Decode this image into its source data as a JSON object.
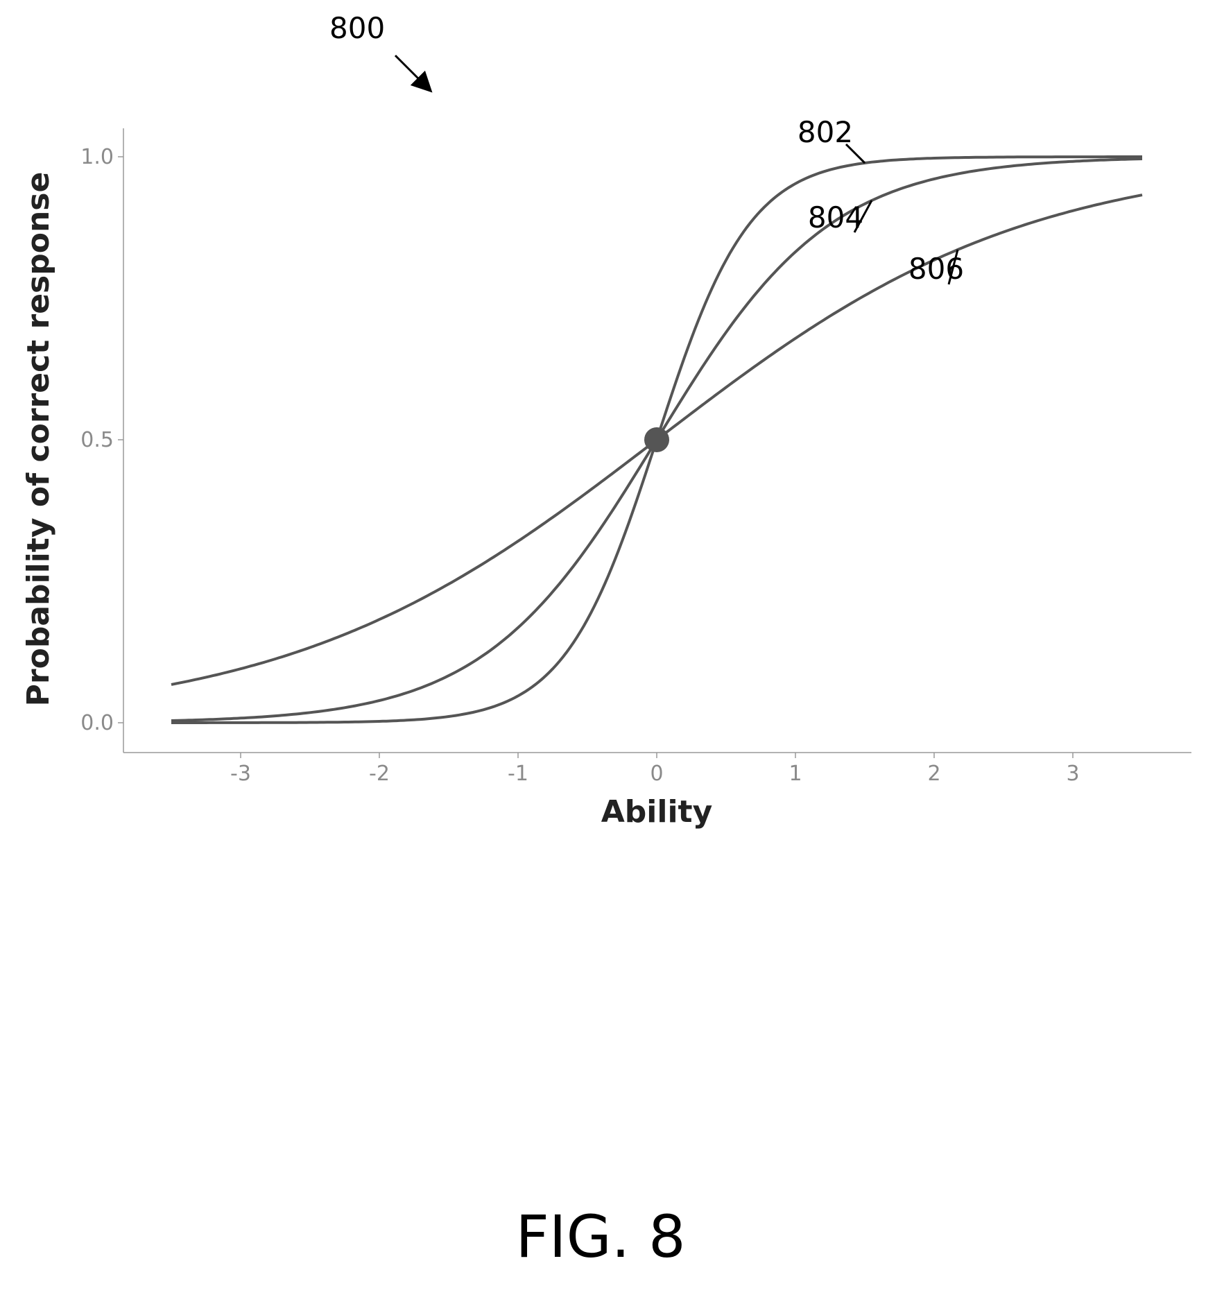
{
  "figure": {
    "ref_number": "800",
    "caption": "FIG. 8"
  },
  "chart_data": {
    "type": "line",
    "xlabel": "Ability",
    "ylabel": "Probability of correct response",
    "xlim": [
      -3.5,
      3.5
    ],
    "ylim": [
      0.0,
      1.0
    ],
    "x_ticks": [
      "-3",
      "-2",
      "-1",
      "0",
      "1",
      "2",
      "3"
    ],
    "y_ticks": [
      "0.0",
      "0.5",
      "1.0"
    ],
    "grid": false,
    "series": [
      {
        "name": "802",
        "model": "logistic",
        "discrimination": 3.0,
        "difficulty": 0.0,
        "x": [
          -3.5,
          -3,
          -2,
          -1,
          0,
          1,
          2,
          3,
          3.5
        ],
        "y": [
          0.0,
          0.0,
          0.0,
          0.05,
          0.5,
          0.95,
          1.0,
          1.0,
          1.0
        ]
      },
      {
        "name": "804",
        "model": "logistic",
        "discrimination": 1.6,
        "difficulty": 0.0,
        "x": [
          -3.5,
          -3,
          -2,
          -1,
          0,
          1,
          2,
          3,
          3.5
        ],
        "y": [
          0.03,
          0.05,
          0.11,
          0.26,
          0.5,
          0.74,
          0.89,
          0.95,
          0.97
        ]
      },
      {
        "name": "806",
        "model": "logistic",
        "discrimination": 0.75,
        "difficulty": 0.0,
        "x": [
          -3.5,
          -3,
          -2,
          -1,
          0,
          1,
          2,
          3,
          3.5
        ],
        "y": [
          0.15,
          0.18,
          0.27,
          0.38,
          0.5,
          0.62,
          0.73,
          0.82,
          0.85
        ]
      }
    ],
    "highlight_point": {
      "x": 0,
      "y": 0.5
    }
  }
}
